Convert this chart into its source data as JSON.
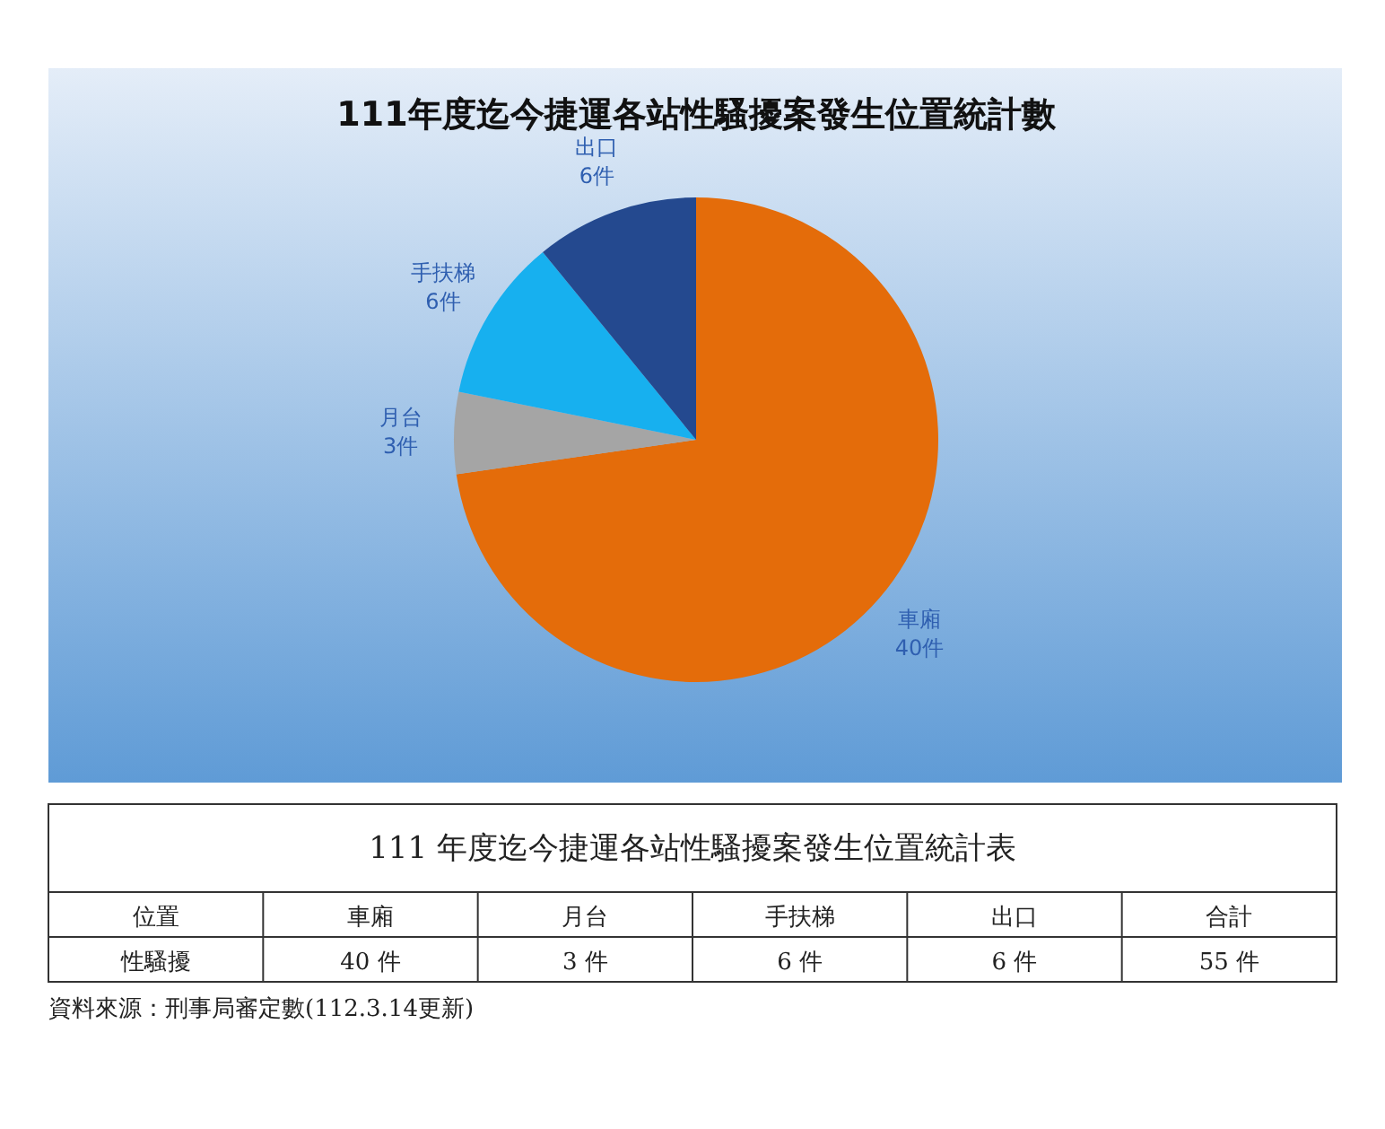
{
  "chart_data": [
    {
      "type": "pie",
      "title": "111年度迄今捷運各站性騷擾案發生位置統計數",
      "categories": [
        "車廂",
        "月台",
        "手扶梯",
        "出口"
      ],
      "values": [
        40,
        3,
        6,
        6
      ],
      "value_labels": [
        "40件",
        "3件",
        "6件",
        "6件"
      ],
      "colors": [
        "#e46c0a",
        "#a5a5a5",
        "#17b0ef",
        "#24498f"
      ]
    },
    {
      "type": "other",
      "title": "111 年度迄今捷運各站性騷擾案發生位置統計表",
      "categories": [
        "車廂",
        "月台",
        "手扶梯",
        "出口",
        "合計"
      ],
      "value_labels": [
        "40 件",
        "3 件",
        "6 件",
        "6 件",
        "55 件"
      ],
      "annotations": [
        "位置",
        "性騷擾",
        "資料來源：刑事局審定數(112.3.14更新)"
      ]
    }
  ]
}
